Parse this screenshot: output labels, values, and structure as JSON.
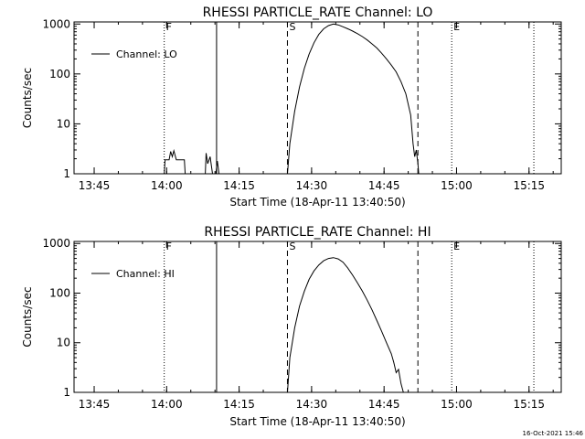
{
  "chart_data": [
    {
      "type": "line",
      "title": "RHESSI PARTICLE_RATE Channel: LO",
      "xlabel": "Start Time (18-Apr-11 13:40:50)",
      "ylabel": "Counts/sec",
      "x_unit": "minutes",
      "xlim": [
        "13:40:50",
        "15:21:40"
      ],
      "ylim": [
        1,
        1100
      ],
      "yscale": "log",
      "x_ticks": [
        "13:45",
        "14:00",
        "14:15",
        "14:30",
        "14:45",
        "15:00",
        "15:15"
      ],
      "y_ticks": [
        "1",
        "10",
        "100",
        "1000"
      ],
      "legend": {
        "position": "top-left",
        "entries": [
          "Channel: LO"
        ]
      },
      "markers": [
        {
          "label": "F",
          "x": "13:59:30",
          "style": "dotted"
        },
        {
          "label": "",
          "x": "14:10:20",
          "style": "solid"
        },
        {
          "label": "S",
          "x": "14:25:00",
          "style": "dashed"
        },
        {
          "label": "",
          "x": "14:52:00",
          "style": "dashed"
        },
        {
          "label": "E",
          "x": "14:59:00",
          "style": "dotted"
        },
        {
          "label": "",
          "x": "15:16:00",
          "style": "dotted"
        }
      ],
      "series": [
        {
          "name": "Channel: LO",
          "segments": [
            [
              [
                "13:59:30",
                1
              ],
              [
                "13:59:40",
                1.9
              ],
              [
                "14:00:30",
                1.9
              ],
              [
                "14:00:50",
                2.8
              ],
              [
                "14:01:10",
                2.2
              ],
              [
                "14:01:30",
                2.9
              ],
              [
                "14:02:00",
                1.9
              ],
              [
                "14:03:40",
                1.9
              ],
              [
                "14:03:50",
                1
              ]
            ],
            [
              [
                "14:08:00",
                1
              ],
              [
                "14:08:10",
                2.6
              ],
              [
                "14:08:30",
                1.6
              ],
              [
                "14:09:00",
                2.2
              ],
              [
                "14:09:30",
                1
              ]
            ],
            [
              [
                "14:10:10",
                1
              ],
              [
                "14:10:30",
                1.8
              ],
              [
                "14:10:50",
                1
              ]
            ],
            [
              [
                "14:25:00",
                1
              ],
              [
                "14:25:30",
                4
              ],
              [
                "14:26:30",
                18
              ],
              [
                "14:27:30",
                55
              ],
              [
                "14:28:30",
                130
              ],
              [
                "14:29:30",
                250
              ],
              [
                "14:30:30",
                420
              ],
              [
                "14:31:30",
                620
              ],
              [
                "14:32:30",
                800
              ],
              [
                "14:33:30",
                930
              ],
              [
                "14:34:30",
                1000
              ],
              [
                "14:35:30",
                960
              ],
              [
                "14:36:30",
                880
              ],
              [
                "14:37:30",
                800
              ],
              [
                "14:38:30",
                720
              ],
              [
                "14:39:30",
                640
              ],
              [
                "14:40:30",
                560
              ],
              [
                "14:41:30",
                480
              ],
              [
                "14:42:30",
                400
              ],
              [
                "14:43:30",
                330
              ],
              [
                "14:44:30",
                260
              ],
              [
                "14:45:30",
                200
              ],
              [
                "14:46:30",
                150
              ],
              [
                "14:47:30",
                110
              ],
              [
                "14:48:30",
                70
              ],
              [
                "14:49:30",
                40
              ],
              [
                "14:50:30",
                15
              ],
              [
                "14:51:00",
                4
              ],
              [
                "14:51:20",
                2.2
              ],
              [
                "14:51:40",
                3
              ],
              [
                "14:52:00",
                1.6
              ],
              [
                "14:52:10",
                1
              ]
            ]
          ]
        }
      ]
    },
    {
      "type": "line",
      "title": "RHESSI PARTICLE_RATE Channel: HI",
      "xlabel": "Start Time (18-Apr-11 13:40:50)",
      "ylabel": "Counts/sec",
      "x_unit": "minutes",
      "xlim": [
        "13:40:50",
        "15:21:40"
      ],
      "ylim": [
        1,
        1100
      ],
      "yscale": "log",
      "x_ticks": [
        "13:45",
        "14:00",
        "14:15",
        "14:30",
        "14:45",
        "15:00",
        "15:15"
      ],
      "y_ticks": [
        "1",
        "10",
        "100",
        "1000"
      ],
      "legend": {
        "position": "top-left",
        "entries": [
          "Channel: HI"
        ]
      },
      "markers": [
        {
          "label": "F",
          "x": "13:59:30",
          "style": "dotted"
        },
        {
          "label": "",
          "x": "14:10:20",
          "style": "solid"
        },
        {
          "label": "S",
          "x": "14:25:00",
          "style": "dashed"
        },
        {
          "label": "",
          "x": "14:52:00",
          "style": "dashed"
        },
        {
          "label": "E",
          "x": "14:59:00",
          "style": "dotted"
        },
        {
          "label": "",
          "x": "15:16:00",
          "style": "dotted"
        }
      ],
      "series": [
        {
          "name": "Channel: HI",
          "segments": [
            [
              [
                "14:25:00",
                1
              ],
              [
                "14:25:30",
                5
              ],
              [
                "14:26:30",
                20
              ],
              [
                "14:27:30",
                55
              ],
              [
                "14:28:30",
                110
              ],
              [
                "14:29:30",
                190
              ],
              [
                "14:30:30",
                280
              ],
              [
                "14:31:30",
                370
              ],
              [
                "14:32:30",
                450
              ],
              [
                "14:33:30",
                500
              ],
              [
                "14:34:30",
                520
              ],
              [
                "14:35:30",
                490
              ],
              [
                "14:36:30",
                420
              ],
              [
                "14:37:30",
                320
              ],
              [
                "14:38:30",
                230
              ],
              [
                "14:39:30",
                160
              ],
              [
                "14:40:30",
                110
              ],
              [
                "14:41:30",
                72
              ],
              [
                "14:42:30",
                46
              ],
              [
                "14:43:30",
                28
              ],
              [
                "14:44:30",
                17
              ],
              [
                "14:45:30",
                10
              ],
              [
                "14:46:30",
                6
              ],
              [
                "14:47:00",
                4
              ],
              [
                "14:47:30",
                2.5
              ],
              [
                "14:48:00",
                2.9
              ],
              [
                "14:48:30",
                1.5
              ],
              [
                "14:49:00",
                1
              ]
            ]
          ]
        }
      ]
    }
  ],
  "footer": {
    "timestamp": "16-Oct-2021 15:46"
  }
}
